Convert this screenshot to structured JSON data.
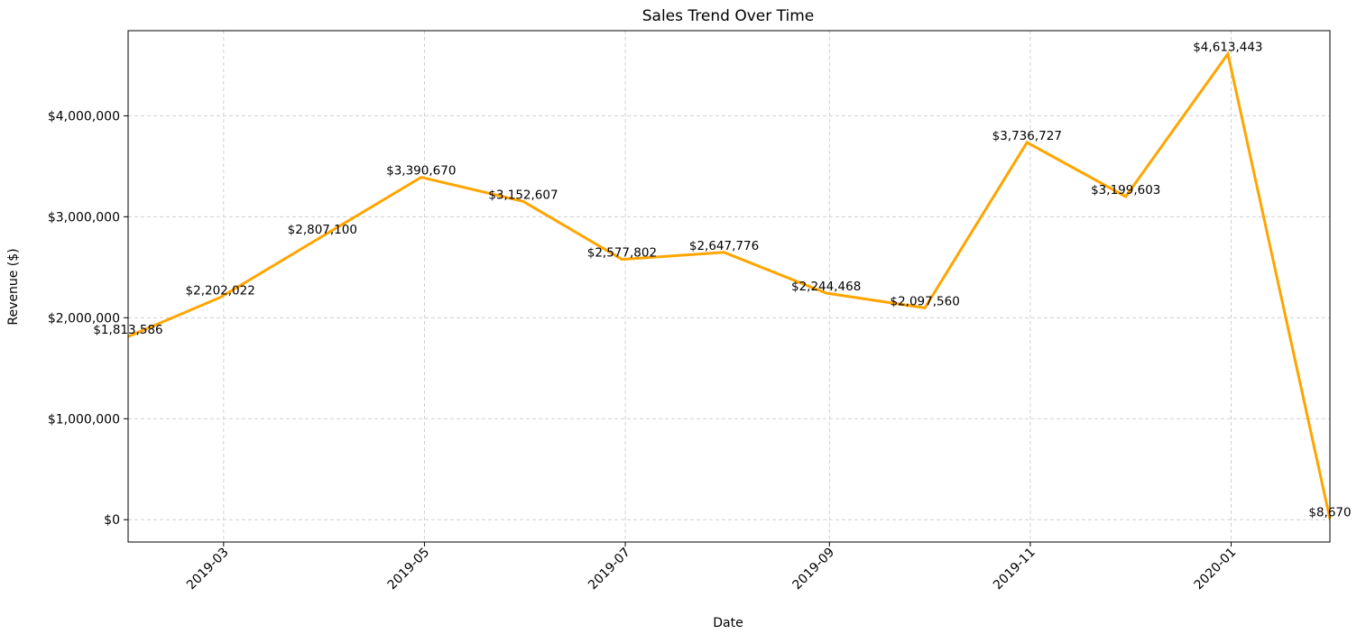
{
  "chart_data": {
    "type": "line",
    "title": "Sales Trend Over Time",
    "xlabel": "Date",
    "ylabel": "Revenue ($)",
    "x": [
      "2019-01-31",
      "2019-02-28",
      "2019-03-31",
      "2019-04-30",
      "2019-05-31",
      "2019-06-30",
      "2019-07-31",
      "2019-08-31",
      "2019-09-30",
      "2019-10-31",
      "2019-11-30",
      "2019-12-31",
      "2020-01-31"
    ],
    "series": [
      {
        "values": [
          1813586,
          2202022,
          2807100,
          3390670,
          3152607,
          2577802,
          2647776,
          2244468,
          2097560,
          3736727,
          3199603,
          4613443,
          8670
        ]
      }
    ],
    "data_labels": [
      "$1,813,586",
      "$2,202,022",
      "$2,807,100",
      "$3,390,670",
      "$3,152,607",
      "$2,577,802",
      "$2,647,776",
      "$2,244,468",
      "$2,097,560",
      "$3,736,727",
      "$3,199,603",
      "$4,613,443",
      "$8,670"
    ],
    "xlim": [
      "2019-01-31",
      "2020-01-31"
    ],
    "ylim": [
      -221069,
      4843183
    ],
    "x_ticks": [
      {
        "date": "2019-03-01",
        "label": "2019-03"
      },
      {
        "date": "2019-05-01",
        "label": "2019-05"
      },
      {
        "date": "2019-07-01",
        "label": "2019-07"
      },
      {
        "date": "2019-09-01",
        "label": "2019-09"
      },
      {
        "date": "2019-11-01",
        "label": "2019-11"
      },
      {
        "date": "2020-01-01",
        "label": "2020-01"
      }
    ],
    "y_ticks": [
      {
        "value": 0,
        "label": "$0"
      },
      {
        "value": 1000000,
        "label": "$1,000,000"
      },
      {
        "value": 2000000,
        "label": "$2,000,000"
      },
      {
        "value": 3000000,
        "label": "$3,000,000"
      },
      {
        "value": 4000000,
        "label": "$4,000,000"
      }
    ],
    "grid": true,
    "line_color": "#ffa500",
    "grid_color": "#d0d0d0"
  }
}
